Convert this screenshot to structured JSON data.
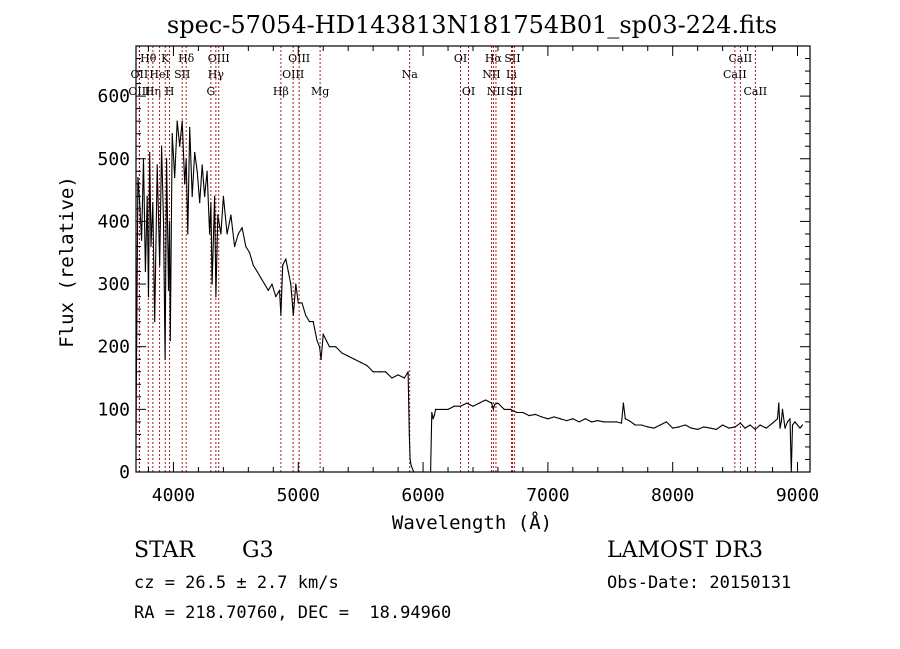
{
  "chart_data": {
    "type": "line",
    "title": "spec-57054-HD143813N181754B01_sp03-224.fits",
    "xlabel": "Wavelength (Å)",
    "ylabel": "Flux (relative)",
    "xlim": [
      3700,
      9100
    ],
    "ylim": [
      0,
      680
    ],
    "xticks": [
      4000,
      5000,
      6000,
      7000,
      8000,
      9000
    ],
    "yticks": [
      0,
      100,
      200,
      300,
      400,
      500,
      600
    ],
    "grid": false,
    "series": [
      {
        "name": "flux",
        "x": [
          3700,
          3715,
          3730,
          3745,
          3760,
          3775,
          3790,
          3800,
          3810,
          3820,
          3835,
          3850,
          3870,
          3890,
          3905,
          3920,
          3933,
          3945,
          3960,
          3968,
          3975,
          3990,
          4010,
          4030,
          4050,
          4070,
          4090,
          4102,
          4115,
          4130,
          4150,
          4170,
          4190,
          4210,
          4230,
          4250,
          4270,
          4290,
          4300,
          4310,
          4330,
          4340,
          4355,
          4380,
          4400,
          4430,
          4460,
          4490,
          4520,
          4550,
          4580,
          4610,
          4640,
          4670,
          4700,
          4730,
          4760,
          4790,
          4820,
          4850,
          4861,
          4875,
          4900,
          4920,
          4940,
          4960,
          4980,
          5000,
          5030,
          5060,
          5090,
          5120,
          5150,
          5170,
          5183,
          5200,
          5250,
          5300,
          5350,
          5400,
          5450,
          5500,
          5550,
          5600,
          5650,
          5700,
          5750,
          5800,
          5850,
          5880,
          5890,
          5896,
          5905,
          5915,
          5925,
          5935,
          6060,
          6070,
          6080,
          6090,
          6100,
          6150,
          6200,
          6250,
          6300,
          6350,
          6400,
          6450,
          6500,
          6550,
          6563,
          6575,
          6600,
          6650,
          6700,
          6750,
          6800,
          6850,
          6900,
          6950,
          7000,
          7050,
          7100,
          7150,
          7200,
          7250,
          7300,
          7350,
          7400,
          7450,
          7500,
          7550,
          7590,
          7605,
          7620,
          7650,
          7700,
          7750,
          7800,
          7850,
          7900,
          7950,
          8000,
          8050,
          8100,
          8150,
          8200,
          8250,
          8300,
          8350,
          8400,
          8450,
          8500,
          8542,
          8580,
          8620,
          8662,
          8700,
          8750,
          8800,
          8840,
          8850,
          8860,
          8870,
          8880,
          8900,
          8920,
          8940,
          8950,
          8960,
          8980,
          9000,
          9020,
          9040
        ],
        "values": [
          60,
          470,
          430,
          370,
          500,
          320,
          440,
          280,
          510,
          360,
          430,
          240,
          490,
          330,
          520,
          400,
          180,
          500,
          290,
          400,
          210,
          540,
          470,
          560,
          520,
          560,
          460,
          500,
          380,
          550,
          440,
          510,
          480,
          430,
          490,
          440,
          480,
          380,
          430,
          300,
          440,
          280,
          410,
          380,
          440,
          380,
          410,
          360,
          380,
          390,
          360,
          350,
          330,
          320,
          310,
          300,
          290,
          300,
          280,
          290,
          250,
          330,
          340,
          320,
          300,
          250,
          300,
          270,
          270,
          250,
          240,
          240,
          210,
          200,
          180,
          220,
          200,
          200,
          190,
          185,
          180,
          175,
          170,
          160,
          160,
          160,
          150,
          155,
          150,
          160,
          60,
          20,
          10,
          5,
          0,
          0,
          0,
          95,
          85,
          90,
          100,
          100,
          100,
          105,
          105,
          110,
          105,
          110,
          115,
          110,
          100,
          108,
          110,
          100,
          100,
          95,
          95,
          90,
          92,
          88,
          85,
          88,
          85,
          82,
          85,
          80,
          85,
          80,
          82,
          80,
          80,
          80,
          78,
          110,
          85,
          82,
          75,
          75,
          72,
          70,
          75,
          80,
          70,
          72,
          75,
          70,
          68,
          72,
          70,
          68,
          75,
          70,
          72,
          78,
          70,
          75,
          68,
          75,
          70,
          78,
          85,
          110,
          70,
          80,
          100,
          70,
          80,
          85,
          0,
          75,
          80,
          75,
          70,
          75
        ]
      }
    ],
    "lines": [
      {
        "name": "Hθ",
        "wave": 3798,
        "row": 1
      },
      {
        "name": "OII",
        "wave": 3727,
        "row": 2
      },
      {
        "name": "OIII",
        "wave": 3727,
        "row": 3
      },
      {
        "name": "Hη",
        "wave": 3835,
        "row": 3
      },
      {
        "name": "K",
        "wave": 3934,
        "row": 1
      },
      {
        "name": "HeI",
        "wave": 3889,
        "row": 2
      },
      {
        "name": "SII",
        "wave": 4070,
        "row": 2
      },
      {
        "name": "H",
        "wave": 3969,
        "row": 3
      },
      {
        "name": "Hδ",
        "wave": 4102,
        "row": 1
      },
      {
        "name": "OIII",
        "wave": 4363,
        "row": 1
      },
      {
        "name": "Hγ",
        "wave": 4340,
        "row": 2
      },
      {
        "name": "G",
        "wave": 4300,
        "row": 3
      },
      {
        "name": "Hβ",
        "wave": 4861,
        "row": 3
      },
      {
        "name": "OIII",
        "wave": 5007,
        "row": 1
      },
      {
        "name": "OIII",
        "wave": 4959,
        "row": 2
      },
      {
        "name": "Mg",
        "wave": 5175,
        "row": 3
      },
      {
        "name": "Na",
        "wave": 5893,
        "row": 2
      },
      {
        "name": "OI",
        "wave": 6300,
        "row": 1
      },
      {
        "name": "OI",
        "wave": 6364,
        "row": 3
      },
      {
        "name": "Hα",
        "wave": 6563,
        "row": 1
      },
      {
        "name": "SII",
        "wave": 6716,
        "row": 1
      },
      {
        "name": "NII",
        "wave": 6548,
        "row": 2
      },
      {
        "name": "Li",
        "wave": 6708,
        "row": 2
      },
      {
        "name": "NII",
        "wave": 6584,
        "row": 3
      },
      {
        "name": "SII",
        "wave": 6731,
        "row": 3
      },
      {
        "name": "CaII",
        "wave": 8542,
        "row": 1
      },
      {
        "name": "CaII",
        "wave": 8498,
        "row": 2
      },
      {
        "name": "CaII",
        "wave": 8662,
        "row": 3
      }
    ],
    "line_color": "#000000",
    "marker_color": "#a40000"
  },
  "footer": {
    "object_class": "STAR",
    "subclass": "G3",
    "survey": "LAMOST DR3",
    "cz": "cz = 26.5 ± 2.7 km/s",
    "obs_date": "Obs-Date: 20150131",
    "coords": "RA = 218.70760, DEC =  18.94960"
  }
}
